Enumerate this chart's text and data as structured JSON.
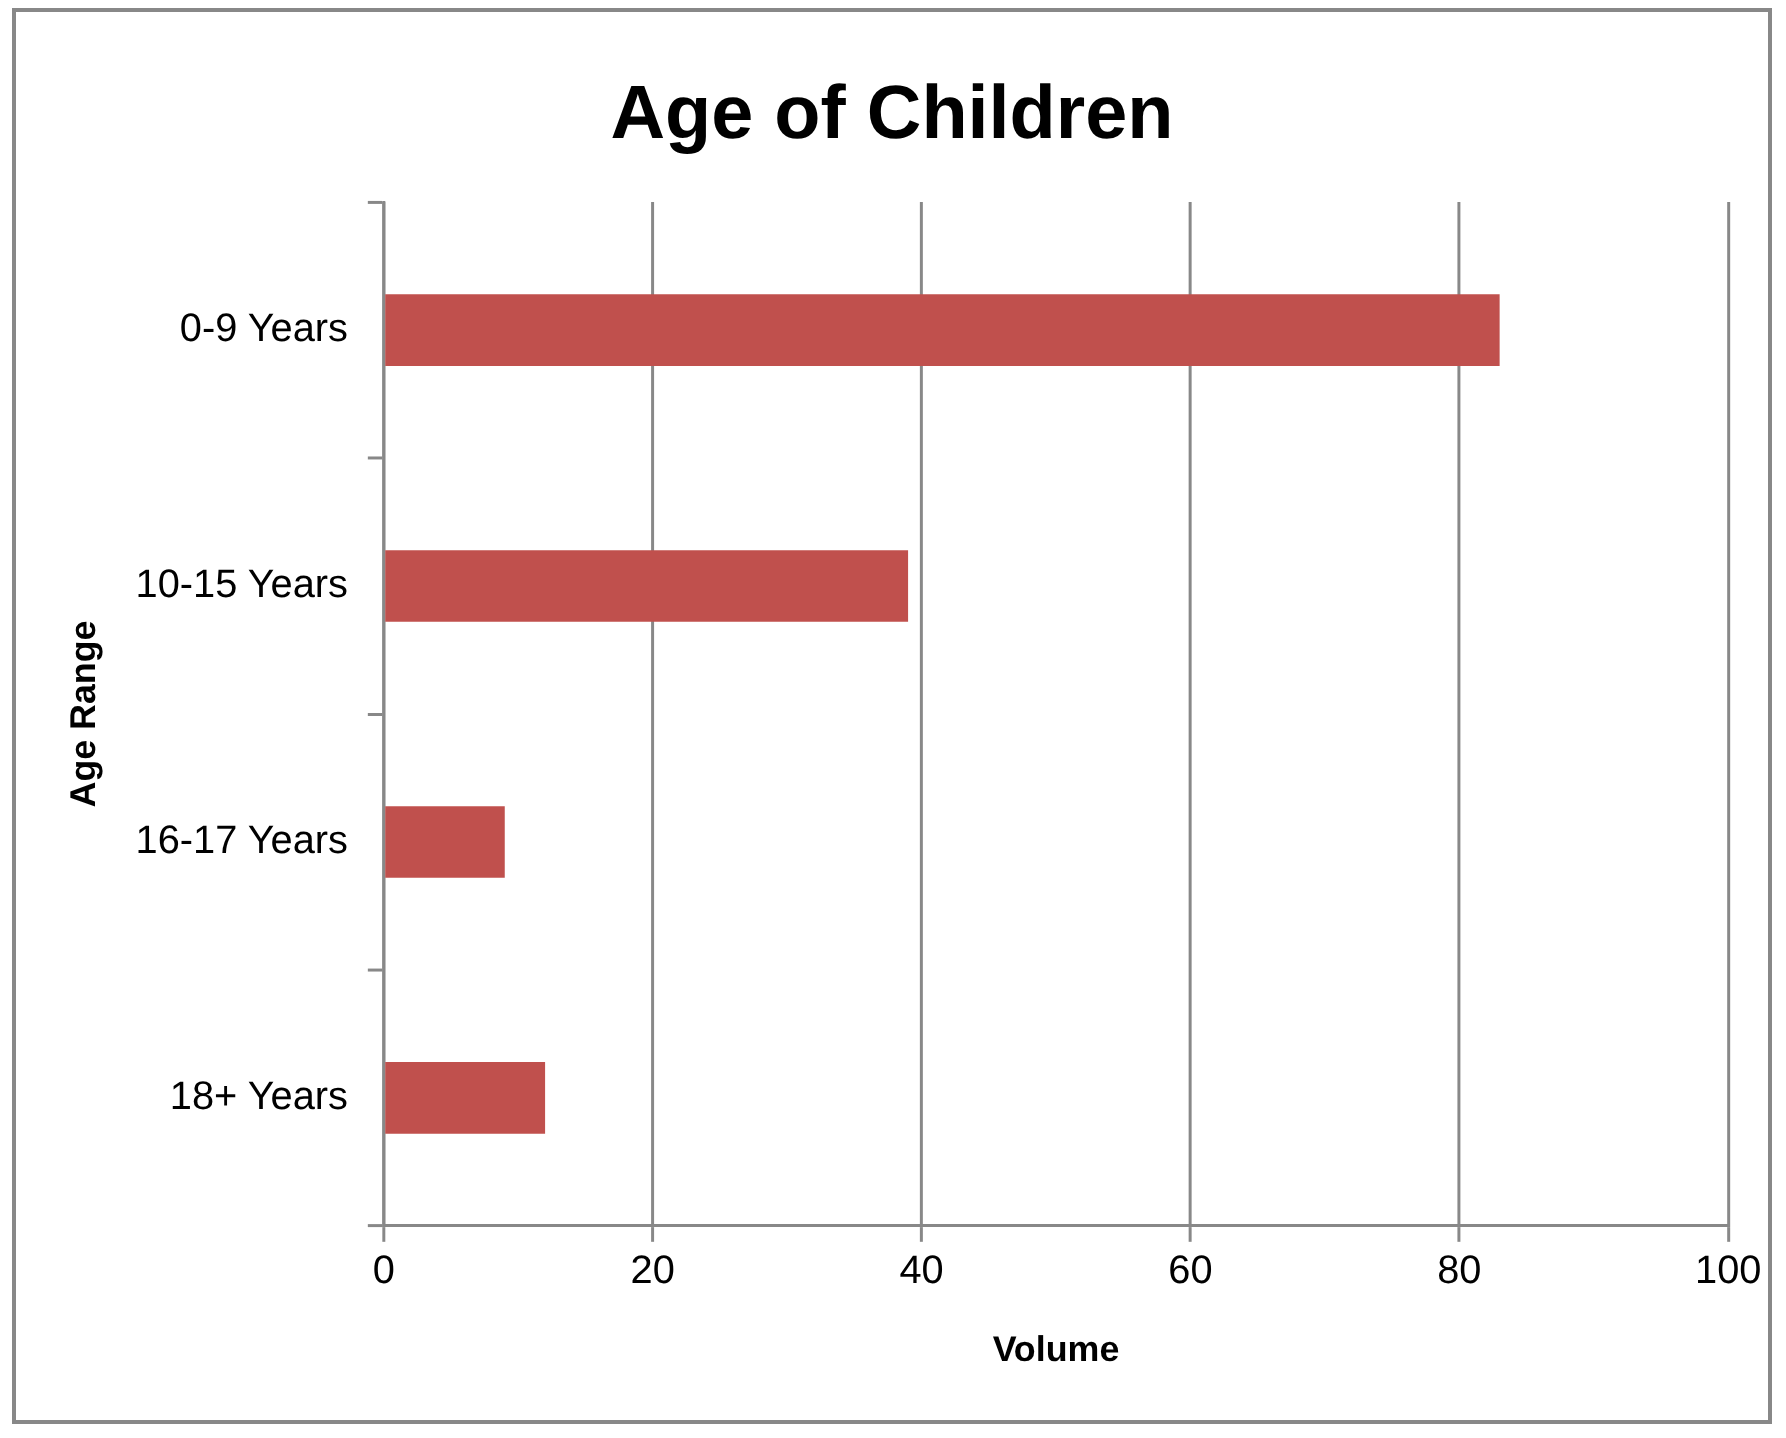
{
  "chart_data": {
    "type": "bar",
    "orientation": "horizontal",
    "title": "Age of Children",
    "xlabel": "Volume",
    "ylabel": "Age Range",
    "categories": [
      "0-9 Years",
      "10-15 Years",
      "16-17 Years",
      "18+ Years"
    ],
    "values": [
      83,
      39,
      9,
      12
    ],
    "color": "#c0504d",
    "xlim": [
      0,
      100
    ],
    "xticks": [
      0,
      20,
      40,
      60,
      80,
      100
    ],
    "grid": "x",
    "legend": false
  }
}
